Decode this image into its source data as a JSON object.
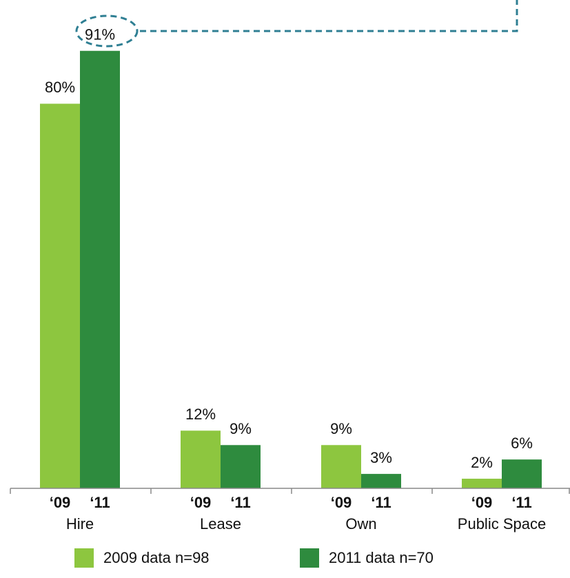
{
  "chart_data": {
    "type": "bar",
    "categories": [
      "Hire",
      "Lease",
      "Own",
      "Public Space"
    ],
    "series": [
      {
        "name": "2009 data n=98",
        "short_label": "‘09",
        "color": "#8dc63f",
        "values": [
          80,
          12,
          9,
          2
        ],
        "value_labels": [
          "80%",
          "12%",
          "9%",
          "2%"
        ]
      },
      {
        "name": "2011 data n=70",
        "short_label": "‘11",
        "color": "#2e8b3e",
        "values": [
          91,
          9,
          3,
          6
        ],
        "value_labels": [
          "91%",
          "9%",
          "3%",
          "6%"
        ]
      }
    ],
    "ylim": [
      0,
      100
    ]
  }
}
